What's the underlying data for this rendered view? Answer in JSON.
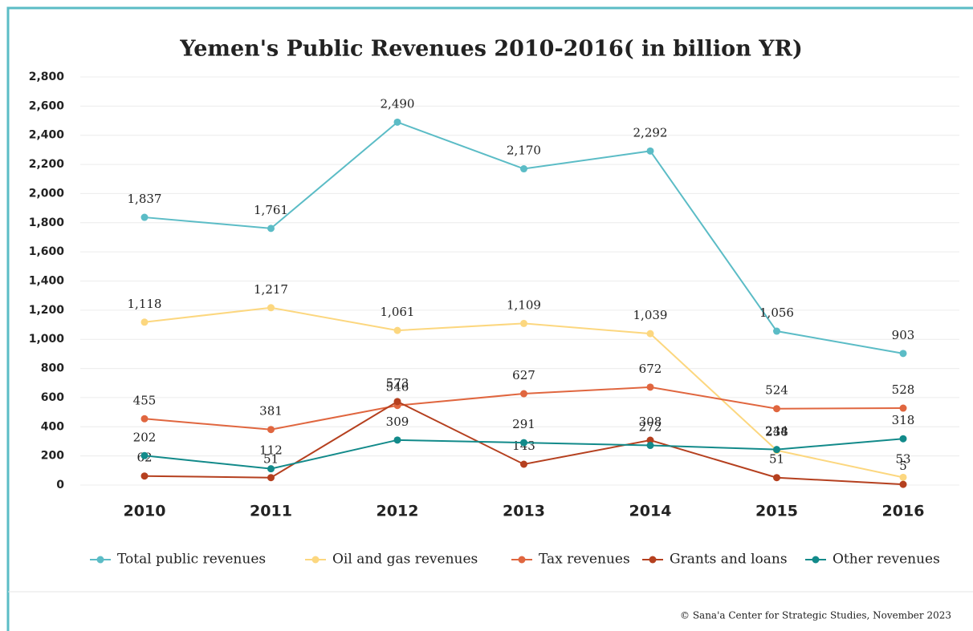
{
  "chart_data": {
    "type": "line",
    "title": "Yemen's Public Revenues 2010-2016( in billion YR)",
    "categories": [
      "2010",
      "2011",
      "2012",
      "2013",
      "2014",
      "2015",
      "2016"
    ],
    "series": [
      {
        "name": "Total public revenues",
        "color": "#5bbcc6",
        "values": [
          1837,
          1761,
          2490,
          2170,
          2292,
          1056,
          903
        ],
        "value_labels": [
          "1,837",
          "1,761",
          "2,490",
          "2,170",
          "2,292",
          "1,056",
          "903"
        ]
      },
      {
        "name": "Oil and gas revenues",
        "color": "#fcd77f",
        "values": [
          1118,
          1217,
          1061,
          1109,
          1039,
          238,
          53
        ],
        "value_labels": [
          "1,118",
          "1,217",
          "1,061",
          "1,109",
          "1,039",
          "238",
          "53"
        ]
      },
      {
        "name": "Tax revenues",
        "color": "#e0663f",
        "values": [
          455,
          381,
          546,
          627,
          672,
          524,
          528
        ]
      },
      {
        "name": "Grants and loans",
        "color": "#b5401f",
        "values": [
          62,
          51,
          573,
          143,
          308,
          51,
          5
        ]
      },
      {
        "name": "Other revenues",
        "color": "#128a8a",
        "values": [
          202,
          112,
          309,
          291,
          272,
          244,
          318
        ]
      }
    ],
    "ylim": [
      0,
      2800
    ],
    "yticks": [
      0,
      200,
      400,
      600,
      800,
      {
        "value": 1000,
        "label": "1,000"
      },
      {
        "value": 1200,
        "label": "1,200"
      },
      {
        "value": 1400,
        "label": "1,400"
      },
      {
        "value": 1600,
        "label": "1,600"
      },
      {
        "value": 1800,
        "label": "1,800"
      },
      {
        "value": 2000,
        "label": "2,000"
      },
      {
        "value": 2200,
        "label": "2,200"
      },
      {
        "value": 2400,
        "label": "2,400"
      },
      {
        "value": 2600,
        "label": "2,600"
      },
      {
        "value": 2800,
        "label": "2,800"
      }
    ],
    "grid": true,
    "legend": "bottom",
    "source": "© Sana'a Center for Strategic Studies, November 2023"
  }
}
